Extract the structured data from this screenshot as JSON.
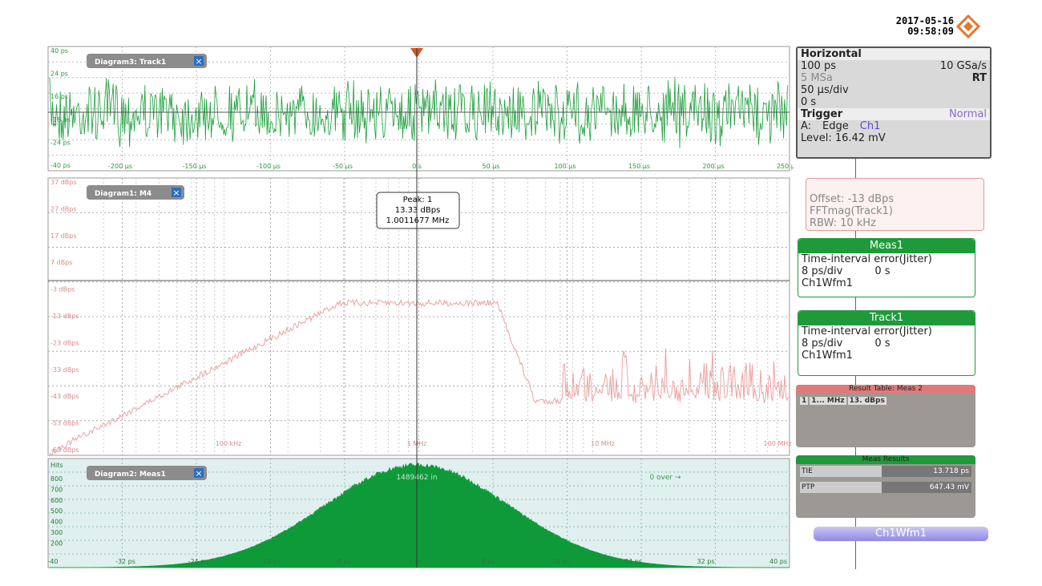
{
  "header": {
    "date": "2017-05-16",
    "time": "09:58:09"
  },
  "diagram3": {
    "title": "Diagram3: Track1",
    "yticks": [
      "40 ps",
      "24 ps",
      "16 ps",
      "-16 ps",
      "-24 ps",
      "-40 ps"
    ],
    "xticks": [
      "-200 µs",
      "-150 µs",
      "-100 µs",
      "-50 µs",
      "0 s",
      "50 µs",
      "100 µs",
      "150 µs",
      "200 µs",
      "250 µs"
    ]
  },
  "diagram1": {
    "title": "Diagram1: M4",
    "yticks": [
      "37 dBps",
      "27 dBps",
      "17 dBps",
      "7 dBps",
      "-3 dBps",
      "-13 dBps",
      "-23 dBps",
      "-33 dBps",
      "-43 dBps",
      "-53 dBps",
      "-63 dBps"
    ],
    "xticks": [
      "100 kHz",
      "1 MHz",
      "10 MHz",
      "100 MHz"
    ],
    "peak": [
      "Peak: 1",
      "13.33 dBps",
      "1.0011677 MHz"
    ]
  },
  "diagram2": {
    "title": "Diagram2: Meas1",
    "unit": "Hits",
    "yticks": [
      "800",
      "700",
      "600",
      "500",
      "400",
      "300",
      "200"
    ],
    "xticks": [
      "-40",
      "-32 ps",
      "-24 ps",
      "-16 ps",
      "-8 ps",
      "0 ps",
      "8 ps",
      "16 ps",
      "24 ps",
      "32 ps",
      "40 ps"
    ],
    "count": "1489462 in",
    "over": "0 over →"
  },
  "horizontal": {
    "title": "Horizontal",
    "time_scale": "100 ps",
    "sample_rate": "10 GSa/s",
    "record": "5 MSa",
    "mode": "RT",
    "div": "50 µs/div",
    "position": "0 s"
  },
  "trigger": {
    "title": "Trigger",
    "mode": "Normal",
    "source_label": "A:",
    "type": "Edge",
    "channel": "Ch1",
    "level": "Level: 16.42 mV"
  },
  "fft": {
    "offset": "Offset: -13 dBps",
    "source": "FFTmag(Track1)",
    "rbw": "RBW:  10 kHz"
  },
  "meas1": {
    "title": "Meas1",
    "desc": "Time-interval error(Jitter)",
    "scale": "8 ps/div",
    "pos": "0 s",
    "source": "Ch1Wfm1"
  },
  "track1": {
    "title": "Track1",
    "desc": "Time-interval error(Jitter)",
    "scale": "8 ps/div",
    "pos": "0 s",
    "source": "Ch1Wfm1"
  },
  "result_table": {
    "title": "Result Table: Meas 2",
    "row": [
      "1",
      "1... MHz",
      "13. dBps"
    ]
  },
  "meas_results": {
    "title": "Meas Results",
    "rows": [
      [
        "TIE",
        "13.718 ps"
      ],
      [
        "PTP",
        "647.43 mV"
      ]
    ]
  },
  "tab": {
    "label": "Ch1Wfm1"
  }
}
